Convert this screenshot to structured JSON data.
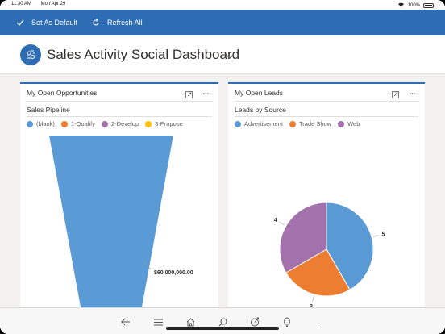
{
  "status_bar": {
    "time": "11:30 AM",
    "date": "Mon Apr 29",
    "battery": "100%"
  },
  "command_bar": {
    "set_default": "Set As Default",
    "refresh_all": "Refresh All"
  },
  "dashboard": {
    "title": "Sales Activity Social Dashboard"
  },
  "panels": [
    {
      "title": "My Open Opportunities",
      "chart_title": "Sales Pipeline",
      "legend": [
        {
          "label": "(blank)",
          "color": "#5b9bd5"
        },
        {
          "label": "1-Qualify",
          "color": "#ed7d31"
        },
        {
          "label": "2-Develop",
          "color": "#a371ac"
        },
        {
          "label": "3-Propose",
          "color": "#ffc000"
        }
      ],
      "more": "..."
    },
    {
      "title": "My Open Leads",
      "chart_title": "Leads by Source",
      "legend": [
        {
          "label": "Advertisement",
          "color": "#5b9bd5"
        },
        {
          "label": "Trade Show",
          "color": "#ed7d31"
        },
        {
          "label": "Web",
          "color": "#a371ac"
        }
      ],
      "more": "..."
    }
  ],
  "chart_data": [
    {
      "type": "funnel",
      "title": "Sales Pipeline",
      "categories": [
        "(blank)"
      ],
      "values": [
        60000000
      ],
      "data_labels": [
        "$60,000,000.00"
      ],
      "legend": [
        "(blank)",
        "1-Qualify",
        "2-Develop",
        "3-Propose"
      ],
      "legend_position": "top-left"
    },
    {
      "type": "pie",
      "title": "Leads by Source",
      "categories": [
        "Advertisement",
        "Trade Show",
        "Web"
      ],
      "values": [
        5,
        3,
        4
      ],
      "data_labels": [
        "5",
        "3",
        "4"
      ],
      "colors": [
        "#5b9bd5",
        "#ed7d31",
        "#a371ac"
      ],
      "legend_position": "top-left"
    }
  ],
  "bottom_nav": {
    "icons": [
      "back-arrow-icon",
      "menu-icon",
      "home-icon",
      "search-icon",
      "activity-icon",
      "lightbulb-icon",
      "more-icon"
    ],
    "more_label": "..."
  }
}
